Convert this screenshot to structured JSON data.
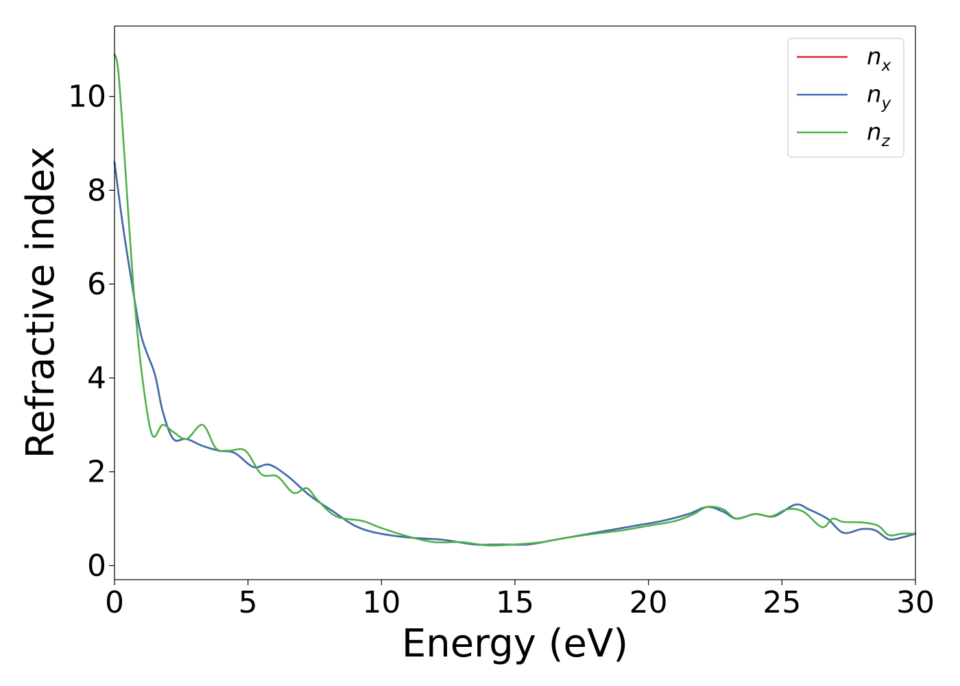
{
  "chart_data": {
    "type": "line",
    "title": "",
    "xlabel": "Energy (eV)",
    "ylabel": "Refractive index",
    "xlim": [
      0,
      30
    ],
    "ylim": [
      -0.3,
      11.5
    ],
    "xticks": [
      0,
      5,
      10,
      15,
      20,
      25,
      30
    ],
    "xtick_labels": [
      "0",
      "5",
      "10",
      "15",
      "20",
      "25",
      "30"
    ],
    "yticks": [
      0,
      2,
      4,
      6,
      8,
      10
    ],
    "ytick_labels": [
      "0",
      "2",
      "4",
      "6",
      "8",
      "10"
    ],
    "grid": false,
    "legend_position": "top-right",
    "series": [
      {
        "name": "n_x",
        "label_base": "n",
        "label_sub": "x",
        "color": "#d62728",
        "x": [
          0,
          0.3,
          0.6,
          1.0,
          1.5,
          1.8,
          2.2,
          2.7,
          3.3,
          3.9,
          4.5,
          5.2,
          5.8,
          6.5,
          7.3,
          8.2,
          9.0,
          9.8,
          11.0,
          12.3,
          13.5,
          14.5,
          15.5,
          16.5,
          17.5,
          18.5,
          19.5,
          20.5,
          21.5,
          22.2,
          22.8,
          23.3,
          24.0,
          24.7,
          25.5,
          26.0,
          26.7,
          27.3,
          28.0,
          28.5,
          29.0,
          29.5,
          30.0
        ],
        "y": [
          8.6,
          7.3,
          6.2,
          4.9,
          4.1,
          3.3,
          2.7,
          2.7,
          2.55,
          2.45,
          2.4,
          2.1,
          2.15,
          1.9,
          1.5,
          1.15,
          0.85,
          0.7,
          0.6,
          0.55,
          0.45,
          0.45,
          0.45,
          0.55,
          0.65,
          0.75,
          0.85,
          0.95,
          1.1,
          1.25,
          1.15,
          1.0,
          1.1,
          1.05,
          1.3,
          1.2,
          1.0,
          0.7,
          0.78,
          0.75,
          0.56,
          0.6,
          0.68
        ]
      },
      {
        "name": "n_y",
        "label_base": "n",
        "label_sub": "y",
        "color": "#3a6fb0",
        "x": [
          0,
          0.3,
          0.6,
          1.0,
          1.5,
          1.8,
          2.2,
          2.7,
          3.3,
          3.9,
          4.5,
          5.2,
          5.8,
          6.5,
          7.3,
          8.2,
          9.0,
          9.8,
          11.0,
          12.3,
          13.5,
          14.5,
          15.5,
          16.5,
          17.5,
          18.5,
          19.5,
          20.5,
          21.5,
          22.2,
          22.8,
          23.3,
          24.0,
          24.7,
          25.5,
          26.0,
          26.7,
          27.3,
          28.0,
          28.5,
          29.0,
          29.5,
          30.0
        ],
        "y": [
          8.6,
          7.3,
          6.2,
          4.9,
          4.1,
          3.3,
          2.7,
          2.7,
          2.55,
          2.45,
          2.4,
          2.1,
          2.15,
          1.9,
          1.5,
          1.15,
          0.85,
          0.7,
          0.6,
          0.55,
          0.45,
          0.45,
          0.45,
          0.55,
          0.65,
          0.75,
          0.85,
          0.95,
          1.1,
          1.25,
          1.15,
          1.0,
          1.1,
          1.05,
          1.3,
          1.2,
          1.0,
          0.7,
          0.78,
          0.75,
          0.56,
          0.6,
          0.68
        ]
      },
      {
        "name": "n_z",
        "label_base": "n",
        "label_sub": "z",
        "color": "#4daf4a",
        "x": [
          0,
          0.15,
          0.4,
          0.7,
          1.0,
          1.4,
          1.8,
          2.2,
          2.7,
          3.3,
          3.8,
          4.3,
          4.9,
          5.5,
          6.1,
          6.7,
          7.2,
          7.6,
          8.3,
          9.3,
          10.0,
          11.0,
          12.0,
          13.0,
          14.0,
          15.0,
          16.0,
          17.0,
          18.0,
          19.0,
          20.0,
          21.0,
          21.7,
          22.2,
          22.8,
          23.3,
          24.0,
          24.6,
          25.2,
          25.8,
          26.5,
          26.9,
          27.3,
          28.0,
          28.6,
          29.0,
          29.5,
          30.0
        ],
        "y": [
          10.9,
          10.5,
          8.5,
          6.0,
          4.2,
          2.8,
          3.0,
          2.85,
          2.7,
          3.0,
          2.5,
          2.45,
          2.45,
          1.95,
          1.9,
          1.55,
          1.65,
          1.4,
          1.05,
          0.95,
          0.8,
          0.62,
          0.5,
          0.5,
          0.43,
          0.45,
          0.5,
          0.6,
          0.68,
          0.75,
          0.85,
          0.95,
          1.1,
          1.25,
          1.2,
          1.0,
          1.1,
          1.05,
          1.2,
          1.15,
          0.82,
          1.0,
          0.93,
          0.92,
          0.85,
          0.65,
          0.68,
          0.68
        ]
      }
    ]
  }
}
